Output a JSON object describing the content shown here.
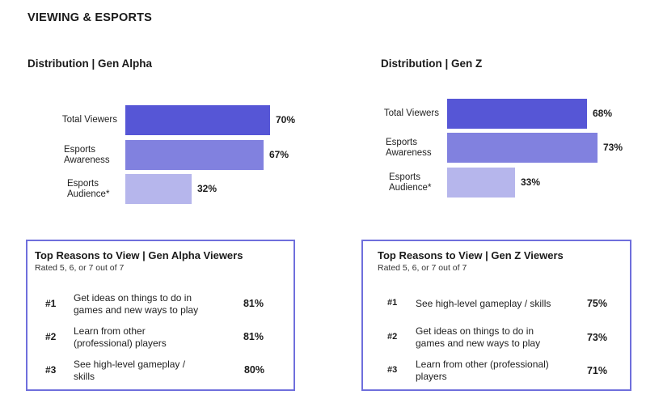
{
  "page": {
    "title": "VIEWING & ESPORTS"
  },
  "colors": {
    "total_viewers": "#5656d6",
    "esports_awareness": "#8181df",
    "esports_audience": "#b6b6ec",
    "box_border": "#6f6fdc"
  },
  "chart_data": [
    {
      "type": "bar",
      "orientation": "horizontal",
      "title": "Distribution | Gen Alpha",
      "categories": [
        "Total Viewers",
        "Esports Awareness",
        "Esports Audience*"
      ],
      "category_lines": [
        [
          "Total Viewers"
        ],
        [
          "Esports",
          "Awareness"
        ],
        [
          "Esports",
          "Audience*"
        ]
      ],
      "values": [
        70,
        67,
        32
      ],
      "value_labels": [
        "70%",
        "67%",
        "32%"
      ],
      "unit": "%",
      "xlim": [
        0,
        100
      ],
      "grid": false
    },
    {
      "type": "bar",
      "orientation": "horizontal",
      "title": "Distribution | Gen Z",
      "categories": [
        "Total Viewers",
        "Esports Awareness",
        "Esports Audience*"
      ],
      "category_lines": [
        [
          "Total Viewers"
        ],
        [
          "Esports",
          "Awareness"
        ],
        [
          "Esports",
          "Audience*"
        ]
      ],
      "values": [
        68,
        73,
        33
      ],
      "value_labels": [
        "68%",
        "73%",
        "33%"
      ],
      "unit": "%",
      "xlim": [
        0,
        100
      ],
      "grid": false
    }
  ],
  "reasons": [
    {
      "title": "Top Reasons to View | Gen Alpha Viewers",
      "subtitle": "Rated 5, 6, or 7 out of 7",
      "items": [
        {
          "rank": "#1",
          "line1": "Get ideas on things to do in",
          "line2": "games and new ways to play",
          "value": "81%"
        },
        {
          "rank": "#2",
          "line1": "Learn from other",
          "line2": "(professional) players",
          "value": "81%"
        },
        {
          "rank": "#3",
          "line1": "See high-level gameplay /",
          "line2": "skills",
          "value": "80%"
        }
      ]
    },
    {
      "title": "Top Reasons to View | Gen Z Viewers",
      "subtitle": "Rated 5, 6, or 7 out of 7",
      "items": [
        {
          "rank": "#1",
          "line1": "See high-level gameplay / skills",
          "line2": "",
          "value": "75%"
        },
        {
          "rank": "#2",
          "line1": "Get ideas on things to do in",
          "line2": "games and new ways to play",
          "value": "73%"
        },
        {
          "rank": "#3",
          "line1": "Learn from other (professional)",
          "line2": "players",
          "value": "71%"
        }
      ]
    }
  ]
}
